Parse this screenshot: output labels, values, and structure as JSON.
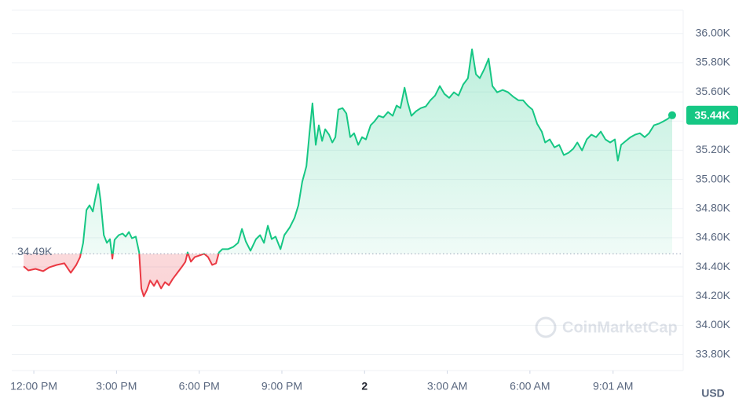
{
  "chart_data": {
    "type": "line",
    "x": [
      -0.37,
      -0.2,
      0.06,
      0.34,
      0.57,
      0.83,
      1.11,
      1.34,
      1.54,
      1.68,
      1.79,
      1.91,
      2.02,
      2.14,
      2.22,
      2.34,
      2.42,
      2.54,
      2.65,
      2.76,
      2.85,
      2.93,
      3.08,
      3.22,
      3.33,
      3.45,
      3.56,
      3.7,
      3.82,
      3.9,
      3.99,
      4.1,
      4.22,
      4.36,
      4.47,
      4.62,
      4.76,
      4.9,
      5.04,
      5.21,
      5.38,
      5.5,
      5.58,
      5.7,
      5.84,
      6.01,
      6.18,
      6.32,
      6.47,
      6.61,
      6.72,
      6.84,
      7.04,
      7.24,
      7.41,
      7.55,
      7.69,
      7.86,
      8.06,
      8.21,
      8.35,
      8.49,
      8.63,
      8.77,
      8.95,
      9.09,
      9.29,
      9.46,
      9.6,
      9.74,
      9.89,
      10.0,
      10.11,
      10.23,
      10.34,
      10.46,
      10.57,
      10.71,
      10.83,
      10.94,
      11.05,
      11.2,
      11.34,
      11.48,
      11.62,
      11.77,
      11.91,
      12.05,
      12.22,
      12.36,
      12.51,
      12.68,
      12.85,
      13.02,
      13.16,
      13.3,
      13.45,
      13.56,
      13.7,
      13.87,
      14.04,
      14.22,
      14.39,
      14.56,
      14.73,
      14.9,
      15.07,
      15.24,
      15.41,
      15.58,
      15.75,
      15.9,
      16.04,
      16.18,
      16.35,
      16.5,
      16.64,
      16.81,
      17.01,
      17.21,
      17.41,
      17.58,
      17.75,
      17.92,
      18.09,
      18.26,
      18.43,
      18.55,
      18.72,
      18.89,
      19.06,
      19.23,
      19.4,
      19.57,
      19.72,
      19.89,
      20.06,
      20.23,
      20.4,
      20.57,
      20.74,
      20.91,
      21.08,
      21.19,
      21.31,
      21.48,
      21.65,
      21.82,
      21.99,
      22.16,
      22.32,
      22.5,
      22.67,
      22.84,
      22.99,
      23.16
    ],
    "values": [
      34404,
      34376,
      34387,
      34371,
      34398,
      34414,
      34425,
      34360,
      34414,
      34468,
      34565,
      34790,
      34823,
      34780,
      34860,
      34968,
      34860,
      34618,
      34565,
      34591,
      34457,
      34586,
      34618,
      34629,
      34608,
      34640,
      34597,
      34608,
      34500,
      34253,
      34199,
      34242,
      34307,
      34270,
      34307,
      34253,
      34296,
      34275,
      34318,
      34360,
      34403,
      34436,
      34500,
      34436,
      34468,
      34479,
      34490,
      34468,
      34414,
      34425,
      34500,
      34522,
      34522,
      34538,
      34565,
      34661,
      34575,
      34511,
      34591,
      34618,
      34565,
      34683,
      34591,
      34608,
      34522,
      34618,
      34672,
      34737,
      34823,
      34984,
      35091,
      35317,
      35522,
      35237,
      35371,
      35264,
      35344,
      35307,
      35253,
      35290,
      35479,
      35489,
      35452,
      35290,
      35317,
      35237,
      35290,
      35274,
      35371,
      35398,
      35436,
      35425,
      35462,
      35436,
      35506,
      35489,
      35629,
      35532,
      35436,
      35468,
      35489,
      35500,
      35543,
      35575,
      35640,
      35586,
      35559,
      35597,
      35575,
      35651,
      35694,
      35892,
      35721,
      35694,
      35758,
      35828,
      35640,
      35597,
      35613,
      35597,
      35565,
      35543,
      35543,
      35506,
      35479,
      35382,
      35328,
      35253,
      35274,
      35220,
      35237,
      35167,
      35183,
      35210,
      35253,
      35199,
      35274,
      35307,
      35290,
      35328,
      35274,
      35253,
      35274,
      35129,
      35237,
      35264,
      35290,
      35307,
      35317,
      35290,
      35317,
      35371,
      35382,
      35398,
      35414,
      35440
    ],
    "color_up": "#16c784",
    "color_down": "#ea3943",
    "baseline": {
      "value": 34490,
      "label": "34.49K"
    },
    "current_price": {
      "value": 35440,
      "label": "35.44K"
    },
    "xlim": [
      -0.8,
      23.56
    ],
    "xticks": [
      {
        "value": 0,
        "label": "12:00 PM"
      },
      {
        "value": 3,
        "label": "3:00 PM"
      },
      {
        "value": 6,
        "label": "6:00 PM"
      },
      {
        "value": 9,
        "label": "9:00 PM"
      },
      {
        "value": 12,
        "label": "2"
      },
      {
        "value": 15,
        "label": "3:00 AM"
      },
      {
        "value": 18,
        "label": "6:00 AM"
      },
      {
        "value": 21.017,
        "label": "9:01 AM"
      }
    ],
    "ylim": [
      33690,
      36160
    ],
    "yticks": [
      {
        "value": 36000,
        "label": "36.00K"
      },
      {
        "value": 35800,
        "label": "35.80K"
      },
      {
        "value": 35600,
        "label": "35.60K"
      },
      {
        "value": 35400,
        "label": "35.40K"
      },
      {
        "value": 35200,
        "label": "35.20K"
      },
      {
        "value": 35000,
        "label": "35.00K"
      },
      {
        "value": 34800,
        "label": "34.80K"
      },
      {
        "value": 34600,
        "label": "34.60K"
      },
      {
        "value": 34400,
        "label": "34.40K"
      },
      {
        "value": 34200,
        "label": "34.20K"
      },
      {
        "value": 34000,
        "label": "34.00K"
      },
      {
        "value": 33800,
        "label": "33.80K"
      }
    ],
    "grid": true,
    "currency": "USD",
    "watermark": "CoinMarketCap"
  }
}
